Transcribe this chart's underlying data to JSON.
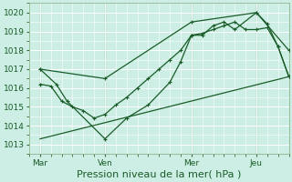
{
  "xlabel": "Pression niveau de la mer( hPa )",
  "background_color": "#cceee4",
  "grid_color": "#ffffff",
  "line_color": "#1a5c28",
  "xlim": [
    0,
    96
  ],
  "ylim": [
    1012.5,
    1020.5
  ],
  "yticks": [
    1013,
    1014,
    1015,
    1016,
    1017,
    1018,
    1019,
    1020
  ],
  "xtick_positions": [
    4,
    28,
    60,
    84
  ],
  "xtick_labels": [
    "Mar",
    "Ven",
    "Mer",
    "Jeu"
  ],
  "vlines": [
    4,
    28,
    60,
    84
  ],
  "series1_x": [
    4,
    8,
    12,
    16,
    20,
    24,
    28,
    32,
    36,
    40,
    44,
    48,
    52,
    56,
    60,
    64,
    68,
    72,
    76,
    80,
    84,
    88,
    92,
    96
  ],
  "series1_y": [
    1016.2,
    1016.1,
    1015.3,
    1015.0,
    1014.8,
    1014.4,
    1014.6,
    1015.1,
    1015.5,
    1016.0,
    1016.5,
    1017.0,
    1017.5,
    1018.0,
    1018.8,
    1018.9,
    1019.1,
    1019.3,
    1019.5,
    1019.1,
    1019.1,
    1019.2,
    1018.2,
    1016.6
  ],
  "series2_x": [
    4,
    96
  ],
  "series2_y": [
    1013.3,
    1016.6
  ],
  "series3_x": [
    4,
    10,
    14,
    28,
    36,
    44,
    52,
    56,
    60,
    64,
    68,
    72,
    76,
    84,
    88,
    92,
    96
  ],
  "series3_y": [
    1017.0,
    1016.2,
    1015.3,
    1013.3,
    1014.4,
    1015.1,
    1016.3,
    1017.4,
    1018.8,
    1018.8,
    1019.3,
    1019.5,
    1019.1,
    1020.0,
    1019.4,
    1018.2,
    1016.6
  ],
  "series4_x": [
    4,
    28,
    60,
    84,
    96
  ],
  "series4_y": [
    1017.0,
    1016.5,
    1019.5,
    1020.0,
    1018.0
  ],
  "font_size_xlabel": 8,
  "font_size_ticks": 6.5
}
